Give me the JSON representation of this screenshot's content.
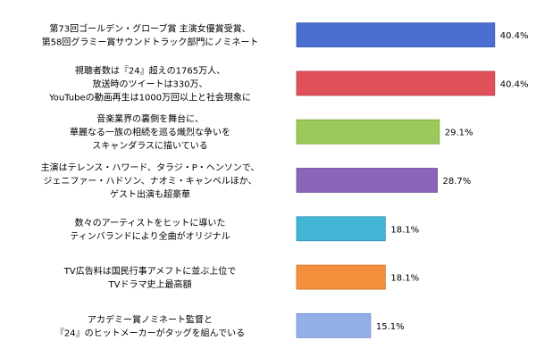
{
  "chart_data": {
    "type": "bar",
    "orientation": "horizontal",
    "grid": false,
    "xlim": [
      0,
      47
    ],
    "value_suffix": "%",
    "categories": [
      [
        "第73回ゴールデン・グローブ賞 主演女優賞受賞、",
        "第58回グラミー賞サウンドトラック部門にノミネート"
      ],
      [
        "視聴者数は『24』超えの1765万人、",
        "放送時のツイートは330万、",
        "YouTubeの動画再生は1000万回以上と社会現象に"
      ],
      [
        "音楽業界の裏側を舞台に、",
        "華麗なる一族の相続を巡る熾烈な争いを",
        "スキャンダラスに描いている"
      ],
      [
        "主演はテレンス・ハワード、タラジ・P・ヘンソンで、",
        "ジェニファー・ハドソン、ナオミ・キャンベルほか、",
        "ゲスト出演も超豪華"
      ],
      [
        "数々のアーティストをヒットに導いた",
        "ティンバランドにより全曲がオリジナル"
      ],
      [
        "TV広告料は国民行事アメフトに並ぶ上位で",
        "TVドラマ史上最高額"
      ],
      [
        "アカデミー賞ノミネート監督と",
        "『24』のヒットメーカーがタッグを組んでいる"
      ]
    ],
    "values": [
      40.4,
      40.4,
      29.1,
      28.7,
      18.1,
      18.1,
      15.1
    ],
    "value_labels": [
      "40.4%",
      "40.4%",
      "29.1%",
      "28.7%",
      "18.1%",
      "18.1%",
      "15.1%"
    ],
    "colors": [
      "#4a6fd1",
      "#e05059",
      "#9bc95a",
      "#8a66b8",
      "#43b6d6",
      "#f4903c",
      "#94aee6"
    ],
    "stroke_colors": [
      "#3857ad",
      "#b83b43",
      "#7ea640",
      "#6c4d96",
      "#2f93b1",
      "#cc7024",
      "#7391cc"
    ]
  }
}
